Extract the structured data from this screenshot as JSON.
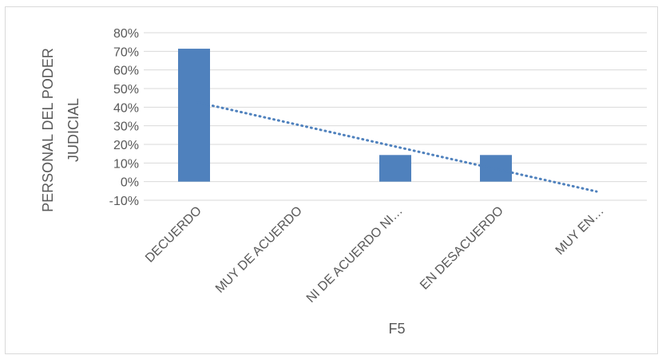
{
  "chart_data": {
    "type": "bar",
    "categories": [
      "DECUERDO",
      "MUY DE ACUERDO",
      "NI DE ACUERDO NI…",
      "EN DESACUERDO",
      "MUY EN…"
    ],
    "values": [
      0.714,
      0,
      0.143,
      0.143,
      0
    ],
    "trendline": {
      "type": "linear",
      "style": "dotted",
      "color": "#4f81bd",
      "start": 0.43,
      "end": -0.053
    },
    "xlabel": "F5",
    "ylabel": [
      "PERSONAL DEL PODER",
      "JUDICIAL"
    ],
    "ylim": [
      -0.1,
      0.8
    ],
    "yticks": [
      -0.1,
      0,
      0.1,
      0.2,
      0.3,
      0.4,
      0.5,
      0.6,
      0.7,
      0.8
    ],
    "ytick_labels": [
      "-10%",
      "0%",
      "10%",
      "20%",
      "30%",
      "40%",
      "50%",
      "60%",
      "70%",
      "80%"
    ],
    "grid": true,
    "legend": "none",
    "colors": {
      "bar": "#4f81bd",
      "grid": "#d9d9d9",
      "text": "#595959"
    }
  }
}
